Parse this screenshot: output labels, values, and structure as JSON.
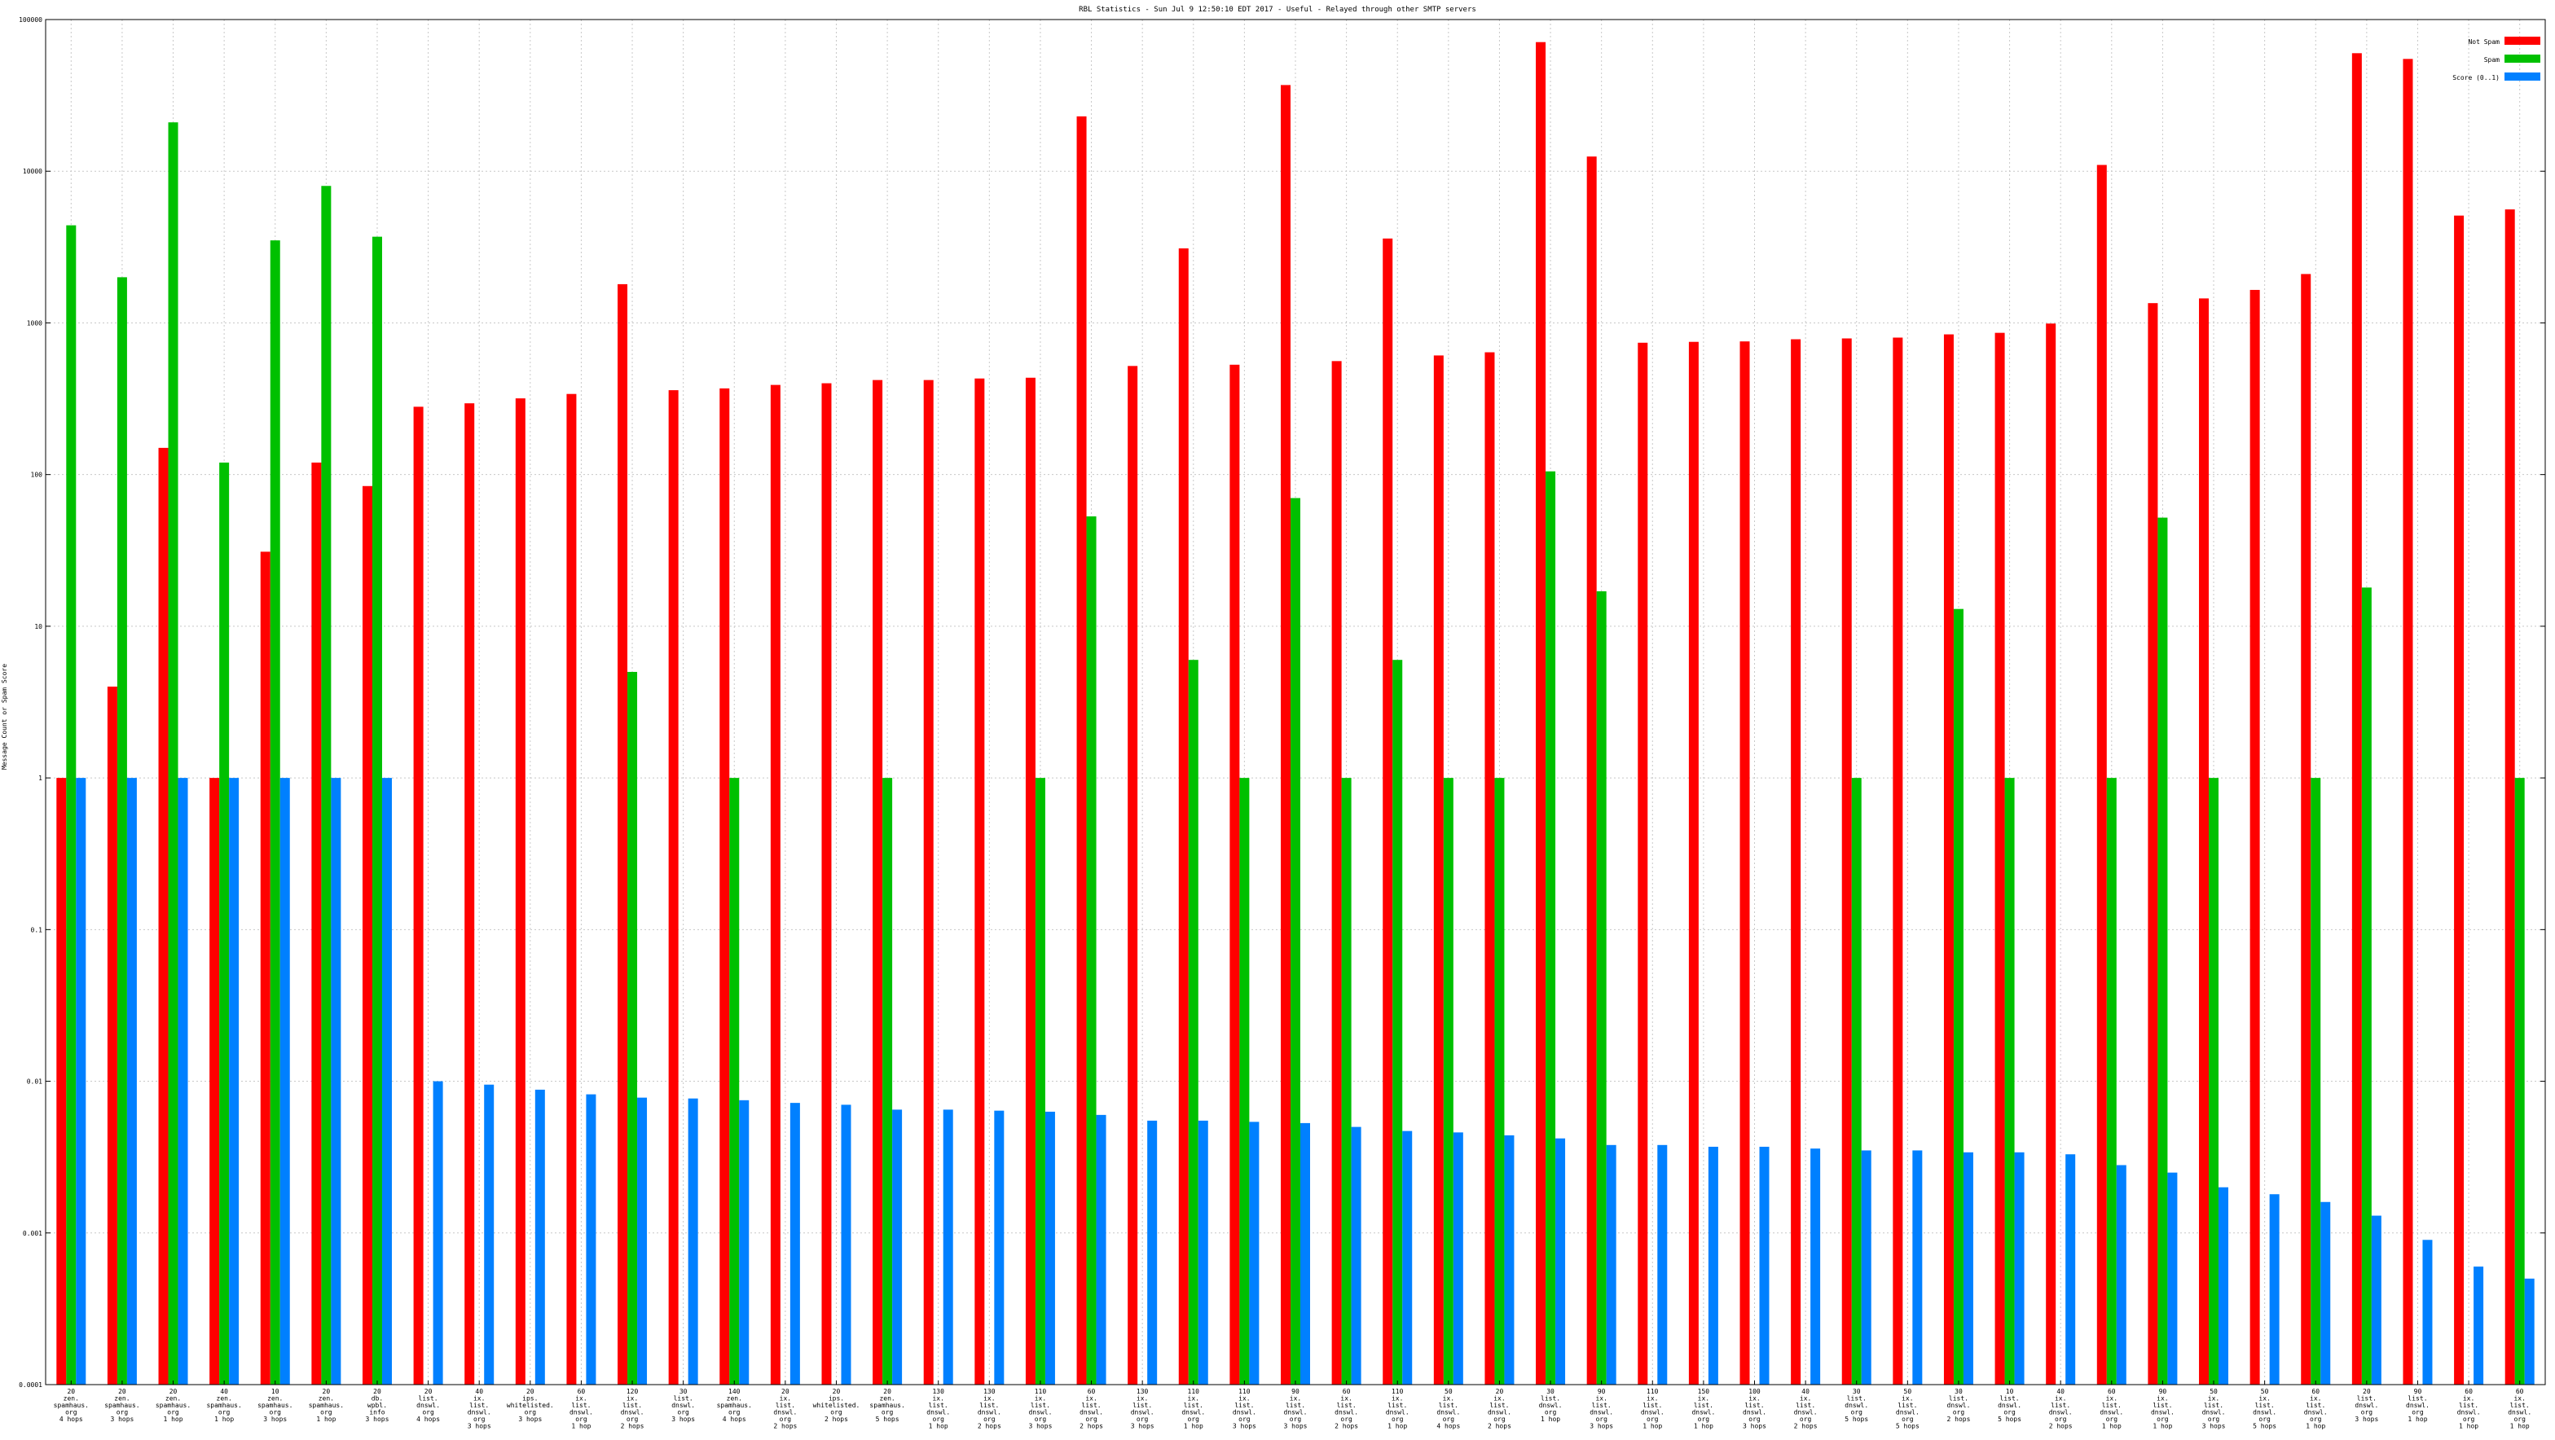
{
  "chart_data": {
    "type": "bar",
    "title": "RBL Statistics - Sun Jul  9 12:50:10 EDT 2017 - Useful - Relayed through other SMTP servers",
    "ylabel": "Message Count or Spam Score",
    "xlabel": "",
    "yscale": "log",
    "ylim": [
      0.0001,
      100000
    ],
    "yticks": [
      {
        "value": 100000,
        "label": "100000"
      },
      {
        "value": 10000,
        "label": "10000"
      },
      {
        "value": 1000,
        "label": "1000"
      },
      {
        "value": 100,
        "label": "100"
      },
      {
        "value": 10,
        "label": "10"
      },
      {
        "value": 1,
        "label": "1"
      },
      {
        "value": 0.1,
        "label": "0.1"
      },
      {
        "value": 0.01,
        "label": "0.01"
      },
      {
        "value": 0.001,
        "label": "0.001"
      },
      {
        "value": 0.0001,
        "label": "0.0001"
      }
    ],
    "grid": true,
    "legend_position": "top-right",
    "categories": [
      [
        "20",
        "zen.",
        "spamhaus.",
        "org",
        "4 hops"
      ],
      [
        "20",
        "zen.",
        "spamhaus.",
        "org",
        "3 hops"
      ],
      [
        "20",
        "zen.",
        "spamhaus.",
        "org",
        "1 hop"
      ],
      [
        "40",
        "zen.",
        "spamhaus.",
        "org",
        "1 hop"
      ],
      [
        "10",
        "zen.",
        "spamhaus.",
        "org",
        "3 hops"
      ],
      [
        "20",
        "zen.",
        "spamhaus.",
        "org",
        "1 hop"
      ],
      [
        "20",
        "db.",
        "wpbl.",
        "info",
        "3 hops"
      ],
      [
        "20",
        "list.",
        "dnswl.",
        "org",
        "4 hops"
      ],
      [
        "40",
        "ix.",
        "list.",
        "dnswl.",
        "org",
        "3 hops"
      ],
      [
        "20",
        "ips.",
        "whitelisted.",
        "org",
        "3 hops"
      ],
      [
        "60",
        "ix.",
        "list.",
        "dnswl.",
        "org",
        "1 hop"
      ],
      [
        "120",
        "ix.",
        "list.",
        "dnswl.",
        "org",
        "2 hops"
      ],
      [
        "30",
        "list.",
        "dnswl.",
        "org",
        "3 hops"
      ],
      [
        "140",
        "zen.",
        "spamhaus.",
        "org",
        "4 hops"
      ],
      [
        "20",
        "ix.",
        "list.",
        "dnswl.",
        "org",
        "2 hops"
      ],
      [
        "20",
        "ips.",
        "whitelisted.",
        "org",
        "2 hops"
      ],
      [
        "20",
        "zen.",
        "spamhaus.",
        "org",
        "5 hops"
      ],
      [
        "130",
        "ix.",
        "list.",
        "dnswl.",
        "org",
        "1 hop"
      ],
      [
        "130",
        "ix.",
        "list.",
        "dnswl.",
        "org",
        "2 hops"
      ],
      [
        "110",
        "ix.",
        "list.",
        "dnswl.",
        "org",
        "3 hops"
      ],
      [
        "60",
        "ix.",
        "list.",
        "dnswl.",
        "org",
        "2 hops"
      ],
      [
        "130",
        "ix.",
        "list.",
        "dnswl.",
        "org",
        "3 hops"
      ],
      [
        "110",
        "ix.",
        "list.",
        "dnswl.",
        "org",
        "1 hop"
      ],
      [
        "110",
        "ix.",
        "list.",
        "dnswl.",
        "org",
        "3 hops"
      ],
      [
        "90",
        "ix.",
        "list.",
        "dnswl.",
        "org",
        "3 hops"
      ],
      [
        "60",
        "ix.",
        "list.",
        "dnswl.",
        "org",
        "2 hops"
      ],
      [
        "110",
        "ix.",
        "list.",
        "dnswl.",
        "org",
        "1 hop"
      ],
      [
        "50",
        "ix.",
        "list.",
        "dnswl.",
        "org",
        "4 hops"
      ],
      [
        "20",
        "ix.",
        "list.",
        "dnswl.",
        "org",
        "2 hops"
      ],
      [
        "30",
        "list.",
        "dnswl.",
        "org",
        "1 hop"
      ],
      [
        "90",
        "ix.",
        "list.",
        "dnswl.",
        "org",
        "3 hops"
      ],
      [
        "110",
        "ix.",
        "list.",
        "dnswl.",
        "org",
        "1 hop"
      ],
      [
        "150",
        "ix.",
        "list.",
        "dnswl.",
        "org",
        "1 hop"
      ],
      [
        "100",
        "ix.",
        "list.",
        "dnswl.",
        "org",
        "3 hops"
      ],
      [
        "40",
        "ix.",
        "list.",
        "dnswl.",
        "org",
        "2 hops"
      ],
      [
        "30",
        "list.",
        "dnswl.",
        "org",
        "5 hops"
      ],
      [
        "50",
        "ix.",
        "list.",
        "dnswl.",
        "org",
        "5 hops"
      ],
      [
        "30",
        "list.",
        "dnswl.",
        "org",
        "2 hops"
      ],
      [
        "10",
        "list.",
        "dnswl.",
        "org",
        "5 hops"
      ],
      [
        "40",
        "ix.",
        "list.",
        "dnswl.",
        "org",
        "2 hops"
      ],
      [
        "60",
        "ix.",
        "list.",
        "dnswl.",
        "org",
        "1 hop"
      ],
      [
        "90",
        "ix.",
        "list.",
        "dnswl.",
        "org",
        "1 hop"
      ],
      [
        "50",
        "ix.",
        "list.",
        "dnswl.",
        "org",
        "3 hops"
      ],
      [
        "50",
        "ix.",
        "list.",
        "dnswl.",
        "org",
        "5 hops"
      ],
      [
        "60",
        "ix.",
        "list.",
        "dnswl.",
        "org",
        "1 hop"
      ],
      [
        "20",
        "list.",
        "dnswl.",
        "org",
        "3 hops"
      ],
      [
        "90",
        "list.",
        "dnswl.",
        "org",
        "1 hop"
      ],
      [
        "60",
        "ix.",
        "list.",
        "dnswl.",
        "org",
        "1 hop"
      ],
      [
        "60",
        "ix.",
        "list.",
        "dnswl.",
        "org",
        "1 hop"
      ]
    ],
    "series": [
      {
        "name": "Not Spam",
        "color": "#ff0000",
        "values": [
          1,
          4,
          150,
          1,
          31,
          120,
          84,
          280,
          295,
          318,
          340,
          1800,
          360,
          370,
          390,
          400,
          420,
          420,
          430,
          435,
          23000,
          520,
          3100,
          530,
          37000,
          560,
          3600,
          610,
          640,
          71000,
          12500,
          740,
          750,
          755,
          780,
          790,
          800,
          840,
          860,
          990,
          11000,
          1350,
          1450,
          1650,
          2100,
          60000,
          55000,
          5100,
          5600
        ]
      },
      {
        "name": "Spam",
        "color": "#00c000",
        "values": [
          4400,
          2000,
          21000,
          120,
          3500,
          8000,
          3700,
          0,
          0,
          0,
          0,
          5,
          0,
          1,
          0,
          0,
          1,
          0,
          0,
          1,
          53,
          0,
          6,
          1,
          70,
          1,
          6,
          1,
          1,
          105,
          17,
          0,
          0,
          0,
          0,
          1,
          0,
          13,
          1,
          0,
          1,
          52,
          1,
          0,
          1,
          18,
          0,
          0,
          1
        ]
      },
      {
        "name": "Score (0..1)",
        "color": "#0080ff",
        "values": [
          1,
          1,
          1,
          1,
          1,
          1,
          1,
          0.01,
          0.0095,
          0.0088,
          0.0082,
          0.0078,
          0.0077,
          0.0075,
          0.0072,
          0.007,
          0.0065,
          0.0065,
          0.0064,
          0.0063,
          0.006,
          0.0055,
          0.0055,
          0.0054,
          0.0053,
          0.005,
          0.0047,
          0.0046,
          0.0044,
          0.0042,
          0.0038,
          0.0038,
          0.0037,
          0.0037,
          0.0036,
          0.0035,
          0.0035,
          0.0034,
          0.0034,
          0.0033,
          0.0028,
          0.0025,
          0.002,
          0.0018,
          0.0016,
          0.0013,
          0.0009,
          0.0006,
          0.0005
        ]
      }
    ]
  }
}
